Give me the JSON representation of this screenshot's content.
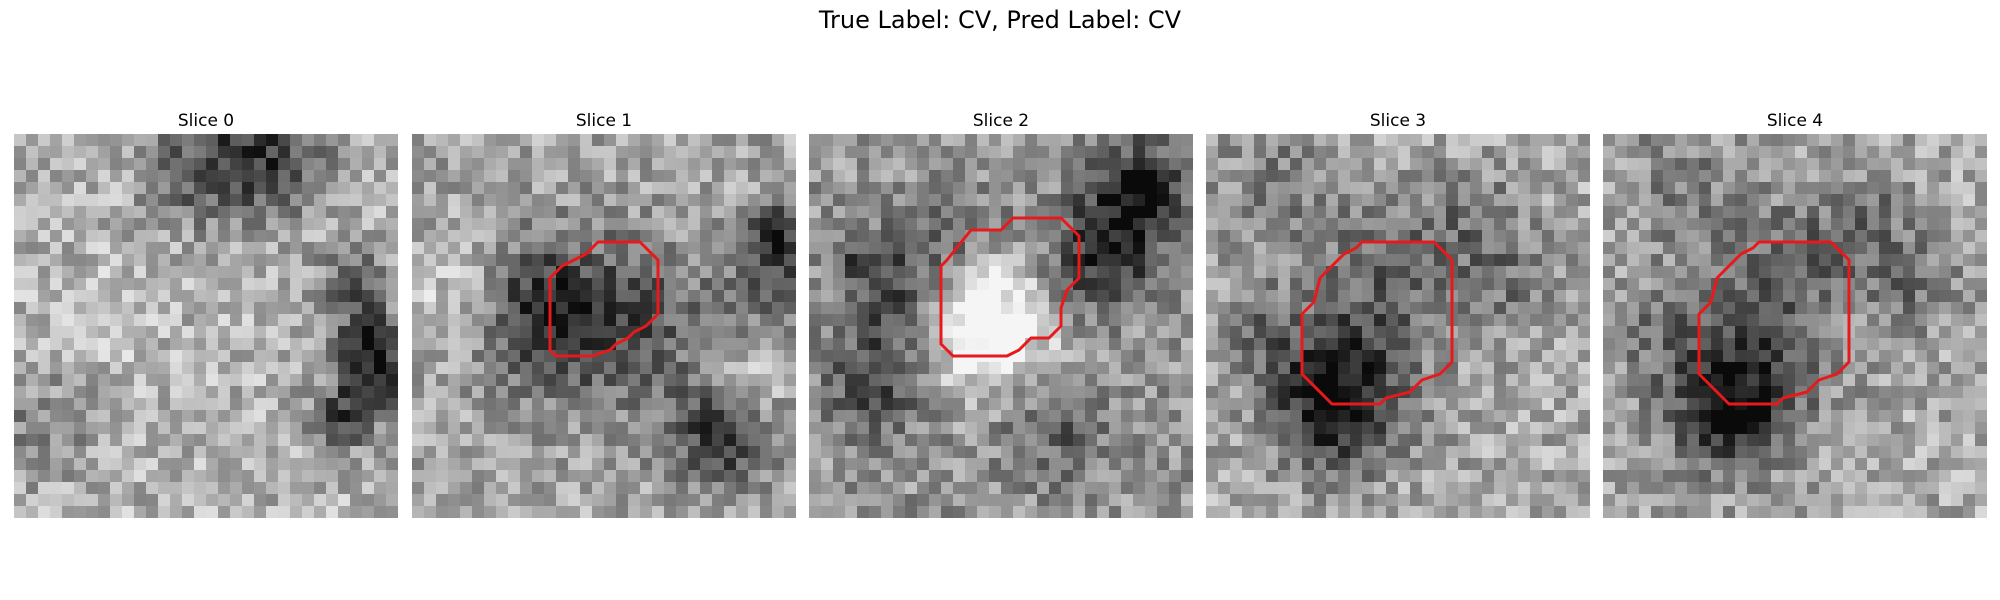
{
  "figure": {
    "suptitle": "True Label: CV, Pred Label: CV"
  },
  "overlay": {
    "contour_color": "#e8191a",
    "colormap": "grayscale"
  },
  "slices": [
    {
      "title": "Slice 0",
      "has_contour": false
    },
    {
      "title": "Slice 1",
      "has_contour": true
    },
    {
      "title": "Slice 2",
      "has_contour": true
    },
    {
      "title": "Slice 3",
      "has_contour": true
    },
    {
      "title": "Slice 4",
      "has_contour": true
    }
  ]
}
